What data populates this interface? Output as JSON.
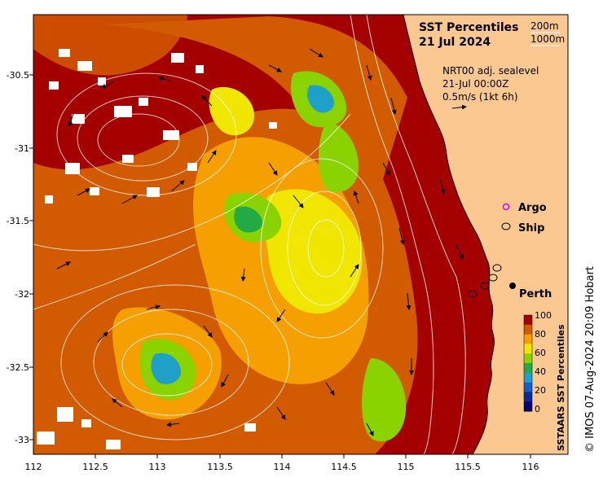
{
  "title": "SST Percentiles",
  "date": "21 Jul 2024",
  "contour_legend": [
    "200m",
    "1000m"
  ],
  "current_info": {
    "line1": "NRT00 adj. sealevel",
    "line2": "21-Jul 00:00Z",
    "line3": "0.5m/s (1kt 6h)"
  },
  "markers": {
    "argo": "Argo",
    "ship": "Ship",
    "city": "Perth"
  },
  "colorbar": {
    "label": "SSTAARS SST Percentiles",
    "ticks": [
      "100",
      "80",
      "60",
      "40",
      "20",
      "0"
    ],
    "colors": [
      "#a50000",
      "#d25a00",
      "#f5a000",
      "#f0e600",
      "#8ad200",
      "#22aa44",
      "#1ea0c8",
      "#1060c8",
      "#0a2896",
      "#00006e"
    ]
  },
  "credit": "© IMOS 07-Aug-2024 20:09 Hobart",
  "axes": {
    "x_ticks": [
      "112",
      "112.5",
      "113",
      "113.5",
      "114",
      "114.5",
      "115",
      "115.5",
      "116"
    ],
    "y_ticks": [
      "-30.5",
      "-31",
      "-31.5",
      "-32",
      "-32.5",
      "-33"
    ]
  },
  "colors": {
    "land": "#fbc891",
    "sea_dark": "#a50000",
    "sea_orange": "#d25a00"
  }
}
